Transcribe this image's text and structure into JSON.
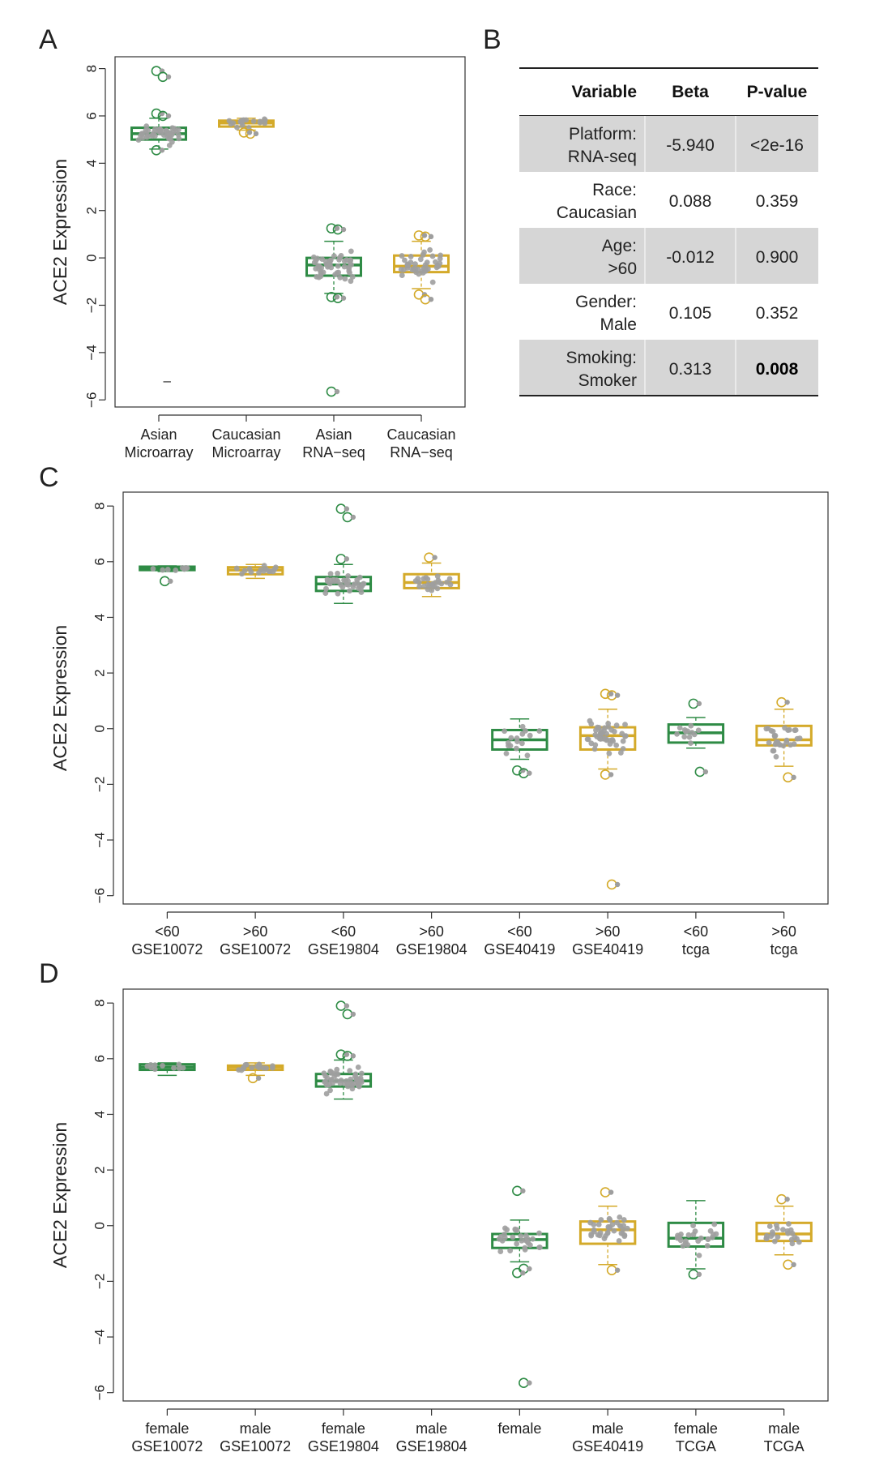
{
  "colors": {
    "green": "#2e8b45",
    "gold": "#d4aa2a",
    "dots": "#9e9e9e",
    "table_shade": "#d6d6d6"
  },
  "panels": {
    "A": {
      "letter": "A"
    },
    "B": {
      "letter": "B"
    },
    "C": {
      "letter": "C"
    },
    "D": {
      "letter": "D"
    }
  },
  "chart_data": [
    {
      "panel": "A",
      "type": "box",
      "ylabel": "ACE2 Expression",
      "ylim": [
        -6.3,
        8.5
      ],
      "yticks": [
        -6,
        -4,
        -2,
        0,
        2,
        4,
        6,
        8
      ],
      "ytick_labels": [
        "−6",
        "−4",
        "−2",
        "0",
        "2",
        "4",
        "6",
        "8"
      ],
      "groups": [
        {
          "label1": "Asian",
          "label2": "Microarray",
          "color": "green",
          "q1": 5.0,
          "median": 5.25,
          "q3": 5.5,
          "whisker_low": 4.6,
          "whisker_high": 5.9,
          "outliers": [
            7.9,
            7.65,
            6.1,
            6.0,
            4.55
          ],
          "n_points": 45,
          "spread": 0.35
        },
        {
          "label1": "Caucasian",
          "label2": "Microarray",
          "color": "gold",
          "q1": 5.55,
          "median": 5.7,
          "q3": 5.8,
          "whisker_low": 5.4,
          "whisker_high": 5.9,
          "outliers": [
            5.3,
            5.25
          ],
          "n_points": 18,
          "spread": 0.15
        },
        {
          "label1": "Asian",
          "label2": "RNA−seq",
          "color": "green",
          "q1": -0.75,
          "median": -0.3,
          "q3": 0.0,
          "whisker_low": -1.5,
          "whisker_high": 0.7,
          "outliers": [
            1.25,
            1.2,
            -1.65,
            -1.7,
            -5.65
          ],
          "n_points": 50,
          "spread": 0.55
        },
        {
          "label1": "Caucasian",
          "label2": "RNA−seq",
          "color": "gold",
          "q1": -0.6,
          "median": -0.35,
          "q3": 0.1,
          "whisker_low": -1.3,
          "whisker_high": 0.7,
          "outliers": [
            0.95,
            0.9,
            -1.55,
            -1.75
          ],
          "n_points": 40,
          "spread": 0.5
        }
      ],
      "annotations": [
        {
          "text": "–",
          "x_group": 0.7,
          "y": -5.2
        }
      ]
    },
    {
      "panel": "C",
      "type": "box",
      "ylabel": "ACE2 Expression",
      "ylim": [
        -6.3,
        8.5
      ],
      "yticks": [
        -6,
        -4,
        -2,
        0,
        2,
        4,
        6,
        8
      ],
      "ytick_labels": [
        "−6",
        "−4",
        "−2",
        "0",
        "2",
        "4",
        "6",
        "8"
      ],
      "groups": [
        {
          "label1": "<60",
          "label2": "GSE10072",
          "color": "green",
          "q1": 5.7,
          "median": 5.75,
          "q3": 5.82,
          "whisker_low": 5.65,
          "whisker_high": 5.85,
          "outliers": [
            5.3
          ],
          "n_points": 8,
          "spread": 0.06
        },
        {
          "label1": ">60",
          "label2": "GSE10072",
          "color": "gold",
          "q1": 5.55,
          "median": 5.7,
          "q3": 5.8,
          "whisker_low": 5.4,
          "whisker_high": 5.9,
          "outliers": [],
          "n_points": 15,
          "spread": 0.15
        },
        {
          "label1": "<60",
          "label2": "GSE19804",
          "color": "green",
          "q1": 4.95,
          "median": 5.2,
          "q3": 5.45,
          "whisker_low": 4.5,
          "whisker_high": 5.9,
          "outliers": [
            7.9,
            7.6,
            6.1
          ],
          "n_points": 35,
          "spread": 0.35
        },
        {
          "label1": ">60",
          "label2": "GSE19804",
          "color": "gold",
          "q1": 5.05,
          "median": 5.25,
          "q3": 5.55,
          "whisker_low": 4.75,
          "whisker_high": 5.95,
          "outliers": [
            6.15
          ],
          "n_points": 25,
          "spread": 0.3
        },
        {
          "label1": "<60",
          "label2": "GSE40419",
          "color": "green",
          "q1": -0.75,
          "median": -0.4,
          "q3": -0.05,
          "whisker_low": -1.1,
          "whisker_high": 0.35,
          "outliers": [
            -1.5,
            -1.6
          ],
          "n_points": 16,
          "spread": 0.4
        },
        {
          "label1": ">60",
          "label2": "GSE40419",
          "color": "gold",
          "q1": -0.75,
          "median": -0.25,
          "q3": 0.05,
          "whisker_low": -1.45,
          "whisker_high": 0.7,
          "outliers": [
            1.25,
            1.2,
            -1.65,
            -5.6
          ],
          "n_points": 45,
          "spread": 0.5
        },
        {
          "label1": "<60",
          "label2": "tcga",
          "color": "green",
          "q1": -0.5,
          "median": -0.15,
          "q3": 0.15,
          "whisker_low": -0.7,
          "whisker_high": 0.4,
          "outliers": [
            0.9,
            -1.55
          ],
          "n_points": 12,
          "spread": 0.35
        },
        {
          "label1": ">60",
          "label2": "tcga",
          "color": "gold",
          "q1": -0.6,
          "median": -0.4,
          "q3": 0.1,
          "whisker_low": -1.35,
          "whisker_high": 0.7,
          "outliers": [
            0.95,
            -1.75
          ],
          "n_points": 28,
          "spread": 0.45
        }
      ]
    },
    {
      "panel": "D",
      "type": "box",
      "ylabel": "ACE2 Expression",
      "ylim": [
        -6.3,
        8.5
      ],
      "yticks": [
        -6,
        -4,
        -2,
        0,
        2,
        4,
        6,
        8
      ],
      "ytick_labels": [
        "−6",
        "−4",
        "−2",
        "0",
        "2",
        "4",
        "6",
        "8"
      ],
      "groups": [
        {
          "label1": "female",
          "label2": "GSE10072",
          "color": "green",
          "q1": 5.6,
          "median": 5.7,
          "q3": 5.8,
          "whisker_low": 5.4,
          "whisker_high": 5.85,
          "outliers": [],
          "n_points": 10,
          "spread": 0.12
        },
        {
          "label1": "male",
          "label2": "GSE10072",
          "color": "gold",
          "q1": 5.6,
          "median": 5.7,
          "q3": 5.75,
          "whisker_low": 5.4,
          "whisker_high": 5.85,
          "outliers": [
            5.3
          ],
          "n_points": 15,
          "spread": 0.12
        },
        {
          "label1": "female",
          "label2": "GSE19804",
          "color": "green",
          "q1": 5.0,
          "median": 5.2,
          "q3": 5.45,
          "whisker_low": 4.55,
          "whisker_high": 5.95,
          "outliers": [
            7.9,
            7.6,
            6.15,
            6.1
          ],
          "n_points": 50,
          "spread": 0.35
        },
        {
          "label1": "male",
          "label2": "GSE19804",
          "color": "gold",
          "q1": null,
          "median": null,
          "q3": null,
          "whisker_low": null,
          "whisker_high": null,
          "outliers": [],
          "n_points": 0,
          "spread": 0
        },
        {
          "label1": "female",
          "label2": "",
          "color": "green",
          "q1": -0.8,
          "median": -0.5,
          "q3": -0.3,
          "whisker_low": -1.3,
          "whisker_high": 0.2,
          "outliers": [
            1.25,
            -1.55,
            -1.7,
            -5.65
          ],
          "n_points": 28,
          "spread": 0.45
        },
        {
          "label1": "male",
          "label2": "GSE40419",
          "color": "gold",
          "q1": -0.65,
          "median": -0.15,
          "q3": 0.15,
          "whisker_low": -1.4,
          "whisker_high": 0.7,
          "outliers": [
            1.2,
            -1.6
          ],
          "n_points": 35,
          "spread": 0.5
        },
        {
          "label1": "female",
          "label2": "TCGA",
          "color": "green",
          "q1": -0.75,
          "median": -0.45,
          "q3": 0.1,
          "whisker_low": -1.55,
          "whisker_high": 0.9,
          "outliers": [
            -1.75
          ],
          "n_points": 25,
          "spread": 0.5
        },
        {
          "label1": "male",
          "label2": "TCGA",
          "color": "gold",
          "q1": -0.55,
          "median": -0.3,
          "q3": 0.1,
          "whisker_low": -1.05,
          "whisker_high": 0.7,
          "outliers": [
            0.95,
            -1.4
          ],
          "n_points": 22,
          "spread": 0.4
        }
      ]
    },
    {
      "panel": "B",
      "type": "table",
      "columns": [
        "Variable",
        "Beta",
        "P-value"
      ],
      "rows": [
        {
          "var1": "Platform:",
          "var2": "RNA-seq",
          "beta": "-5.940",
          "p": "<2e-16",
          "shaded": true,
          "bold_p": false
        },
        {
          "var1": "Race:",
          "var2": "Caucasian",
          "beta": "0.088",
          "p": "0.359",
          "shaded": false,
          "bold_p": false
        },
        {
          "var1": "Age:",
          "var2": ">60",
          "beta": "-0.012",
          "p": "0.900",
          "shaded": true,
          "bold_p": false
        },
        {
          "var1": "Gender:",
          "var2": "Male",
          "beta": "0.105",
          "p": "0.352",
          "shaded": false,
          "bold_p": false
        },
        {
          "var1": "Smoking:",
          "var2": "Smoker",
          "beta": "0.313",
          "p": "0.008",
          "shaded": true,
          "bold_p": true
        }
      ]
    }
  ]
}
